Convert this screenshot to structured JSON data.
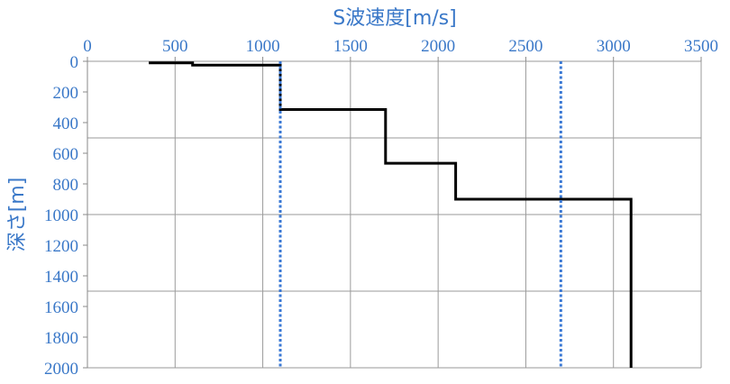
{
  "chart_data": {
    "type": "line",
    "xlabel": "S波速度[m/s]",
    "ylabel": "深さ[m]",
    "xlim": [
      0,
      3500
    ],
    "ylim": [
      0,
      2000
    ],
    "y_inverted": true,
    "x_axis_position": "top",
    "xticks": [
      0,
      500,
      1000,
      1500,
      2000,
      2500,
      3000,
      3500
    ],
    "yticks": [
      0,
      200,
      400,
      600,
      800,
      1000,
      1200,
      1400,
      1600,
      1800,
      2000
    ],
    "grid": {
      "vertical_every": 500,
      "horizontal_every": 500
    },
    "series": [
      {
        "style": "solid",
        "color": "#000000",
        "points": [
          [
            350,
            10
          ],
          [
            600,
            10
          ],
          [
            600,
            25
          ],
          [
            1100,
            25
          ],
          [
            1100,
            315
          ],
          [
            1700,
            315
          ],
          [
            1700,
            665
          ],
          [
            2100,
            665
          ],
          [
            2100,
            900
          ],
          [
            3100,
            900
          ],
          [
            3100,
            2000
          ]
        ]
      },
      {
        "style": "dotted",
        "color": "#3a78d4",
        "points": [
          [
            1100,
            0
          ],
          [
            1100,
            2000
          ]
        ]
      },
      {
        "style": "dotted",
        "color": "#3a78d4",
        "points": [
          [
            2700,
            0
          ],
          [
            2700,
            2000
          ]
        ]
      }
    ]
  }
}
